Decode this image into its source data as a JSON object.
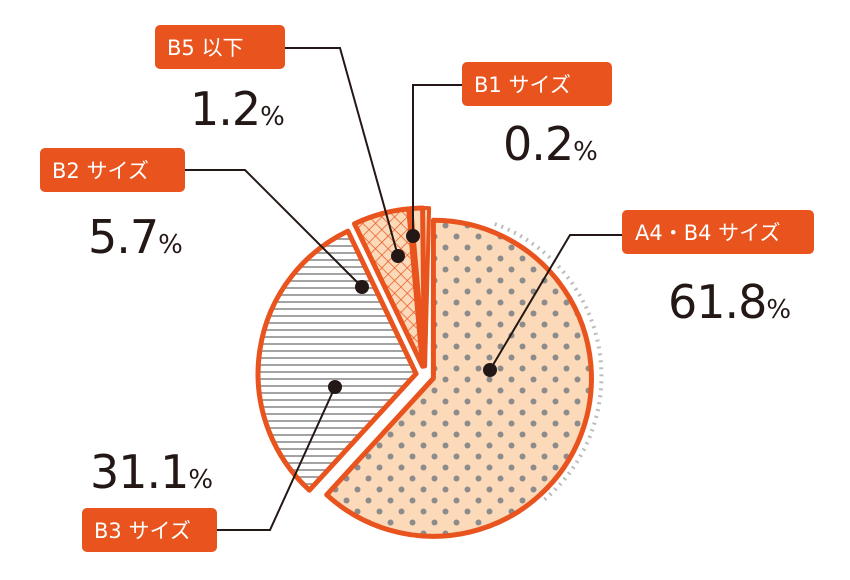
{
  "colors": {
    "accent": "#E8531E",
    "fill_light": "#FCD9B8",
    "hatch": "#8C8C8C",
    "ink": "#231815",
    "label_text": "#FFFFFF"
  },
  "chart_data": {
    "type": "pie",
    "title": "",
    "unit": "%",
    "slices": [
      {
        "label": "A4・B4 サイズ",
        "value": 61.8,
        "value_text": "61.8",
        "pattern": "dots"
      },
      {
        "label": "B3 サイズ",
        "value": 31.1,
        "value_text": "31.1",
        "pattern": "horizontal-lines"
      },
      {
        "label": "B2 サイズ",
        "value": 5.7,
        "value_text": "5.7",
        "pattern": "crosshatch"
      },
      {
        "label": "B5 以下",
        "value": 1.2,
        "value_text": "1.2",
        "pattern": "plain"
      },
      {
        "label": "B1 サイズ",
        "value": 0.2,
        "value_text": "0.2",
        "pattern": "plain"
      }
    ]
  }
}
